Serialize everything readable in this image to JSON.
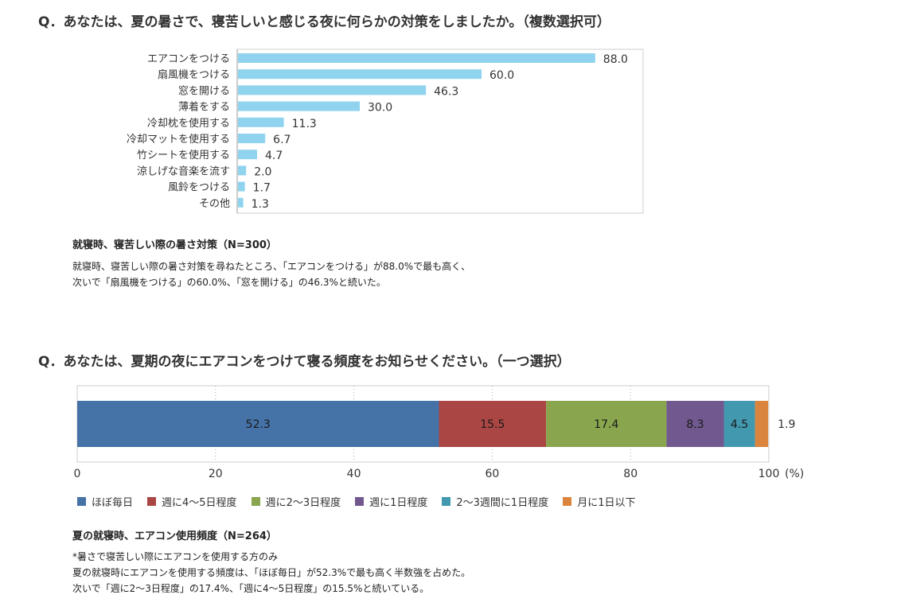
{
  "question1": "Q．あなたは、夏の暑さで、寝苦しいと感じる夜に何らかの対策をしましたか。（複数選択可）",
  "question2": "Q．あなたは、夏期の夜にエアコンをつけて寝る頻度をお知らせください。（一つ選択）",
  "caption1": "就寝時、寝苦しい際の暑さ対策（N=300）",
  "desc1": [
    "就寝時、寝苦しい際の暑さ対策を尋ねたところ、「エアコンをつける」が88.0%で最も高く、",
    "次いで「扇風機をつける」の60.0%、「窓を開ける」の46.3%と続いた。"
  ],
  "caption2": "夏の就寝時、エアコン使用頻度（N=264）",
  "desc2": [
    "*暑さで寝苦しい際にエアコンを使用する方のみ",
    "夏の就寝時にエアコンを使用する頻度は、「ほぼ毎日」が52.3%で最も高く半数強を占めた。",
    "次いで「週に2～3日程度」の17.4%、「週に4～5日程度」の15.5%と続いている。"
  ],
  "chart_data": [
    {
      "type": "bar",
      "orientation": "horizontal",
      "categories": [
        "エアコンをつける",
        "扇風機をつける",
        "窓を開ける",
        "薄着をする",
        "冷却枕を使用する",
        "冷却マットを使用する",
        "竹シートを使用する",
        "涼しげな音楽を流す",
        "風鈴をつける",
        "その他"
      ],
      "values": [
        88.0,
        60.0,
        46.3,
        30.0,
        11.3,
        6.7,
        4.7,
        2.0,
        1.7,
        1.3
      ],
      "value_labels": [
        "88.0",
        "60.0",
        "46.3",
        "30.0",
        "11.3",
        "6.7",
        "4.7",
        "2.0",
        "1.7",
        "1.3"
      ],
      "xlim": [
        0,
        100
      ],
      "color": "#8fd3ee"
    },
    {
      "type": "bar",
      "orientation": "horizontal-stacked",
      "series": [
        {
          "name": "ほぼ毎日",
          "value": 52.3,
          "label": "52.3",
          "color": "#4572a7"
        },
        {
          "name": "週に4～5日程度",
          "value": 15.5,
          "label": "15.5",
          "color": "#aa4643"
        },
        {
          "name": "週に2～3日程度",
          "value": 17.4,
          "label": "17.4",
          "color": "#89a54e"
        },
        {
          "name": "週に1日程度",
          "value": 8.3,
          "label": "8.3",
          "color": "#71588f"
        },
        {
          "name": "2～3週間に1日程度",
          "value": 4.5,
          "label": "4.5",
          "color": "#4198af"
        },
        {
          "name": "月に1日以下",
          "value": 1.9,
          "label": "1.9",
          "color": "#db843d"
        }
      ],
      "xticks": [
        "0",
        "20",
        "40",
        "60",
        "80",
        "100"
      ],
      "xtick_values": [
        0,
        20,
        40,
        60,
        80,
        100
      ],
      "xunit": "(%)",
      "xlim": [
        0,
        100
      ],
      "grid": "dotted vertical"
    }
  ]
}
